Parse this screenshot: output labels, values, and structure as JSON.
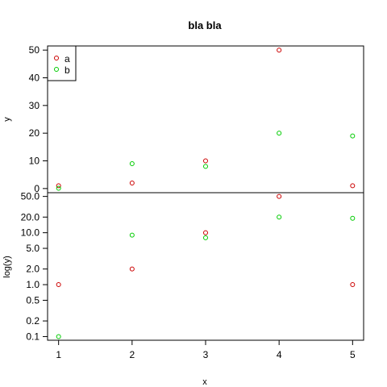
{
  "chart_data": {
    "type": "scatter",
    "title": "bla bla",
    "x": [
      1,
      2,
      3,
      4,
      5
    ],
    "xlabel": "x",
    "x_ticks": [
      "1",
      "2",
      "3",
      "4",
      "5"
    ],
    "xlim": [
      0.85,
      5.15
    ],
    "series": [
      {
        "name": "a",
        "color": "#cc0000",
        "values": [
          1,
          2,
          10,
          50,
          1
        ]
      },
      {
        "name": "b",
        "color": "#00cc00",
        "values": [
          0.1,
          9,
          8,
          20,
          19
        ]
      }
    ],
    "panels": [
      {
        "ylabel": "y",
        "scale": "linear",
        "ylim": [
          -1.5,
          51.5
        ],
        "y_ticks": [
          0,
          10,
          20,
          30,
          40,
          50
        ],
        "y_tick_labels": [
          "0",
          "10",
          "20",
          "30",
          "40",
          "50"
        ],
        "legend": "top-left"
      },
      {
        "ylabel": "log(y)",
        "scale": "log",
        "ylim": [
          0.085,
          59
        ],
        "y_ticks": [
          0.1,
          0.2,
          0.5,
          1,
          2,
          5,
          10,
          20,
          50
        ],
        "y_tick_labels": [
          "0.1",
          "0.2",
          "0.5",
          "1.0",
          "2.0",
          "5.0",
          "10.0",
          "20.0",
          "50.0"
        ],
        "legend": "none"
      }
    ]
  }
}
